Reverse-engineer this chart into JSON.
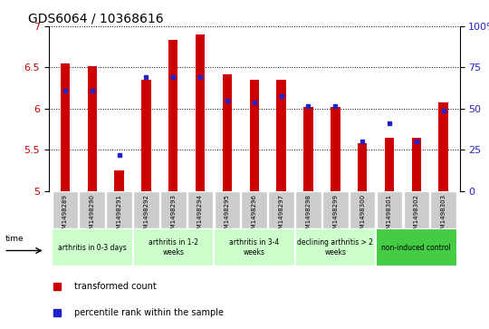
{
  "title": "GDS6064 / 10368616",
  "samples": [
    "GSM1498289",
    "GSM1498290",
    "GSM1498291",
    "GSM1498292",
    "GSM1498293",
    "GSM1498294",
    "GSM1498295",
    "GSM1498296",
    "GSM1498297",
    "GSM1498298",
    "GSM1498299",
    "GSM1498300",
    "GSM1498301",
    "GSM1498302",
    "GSM1498303"
  ],
  "red_values": [
    6.55,
    6.52,
    5.25,
    6.35,
    6.83,
    6.9,
    6.42,
    6.35,
    6.35,
    6.02,
    6.02,
    5.58,
    5.65,
    5.65,
    6.08
  ],
  "blue_values": [
    6.22,
    6.22,
    5.44,
    6.38,
    6.38,
    6.38,
    6.1,
    6.08,
    6.15,
    6.03,
    6.03,
    5.6,
    5.82,
    5.6,
    5.98
  ],
  "ylim_left": [
    5.0,
    7.0
  ],
  "ylim_right": [
    0,
    100
  ],
  "yticks_left": [
    5.0,
    5.5,
    6.0,
    6.5,
    7.0
  ],
  "yticks_right": [
    0,
    25,
    50,
    75,
    100
  ],
  "bar_color": "#cc0000",
  "dot_color": "#2222cc",
  "bar_bottom": 5.0,
  "bar_width": 0.35,
  "groups": [
    {
      "label": "arthritis in 0-3 days",
      "start": 0,
      "end": 3
    },
    {
      "label": "arthritis in 1-2\nweeks",
      "start": 3,
      "end": 6
    },
    {
      "label": "arthritis in 3-4\nweeks",
      "start": 6,
      "end": 9
    },
    {
      "label": "declining arthritis > 2\nweeks",
      "start": 9,
      "end": 12
    },
    {
      "label": "non-induced control",
      "start": 12,
      "end": 15
    }
  ],
  "group_colors": [
    "#ccffcc",
    "#ccffcc",
    "#ccffcc",
    "#ccffcc",
    "#44cc44"
  ],
  "legend_red": "transformed count",
  "legend_blue": "percentile rank within the sample",
  "sample_bg": "#cccccc",
  "title_fontsize": 10
}
